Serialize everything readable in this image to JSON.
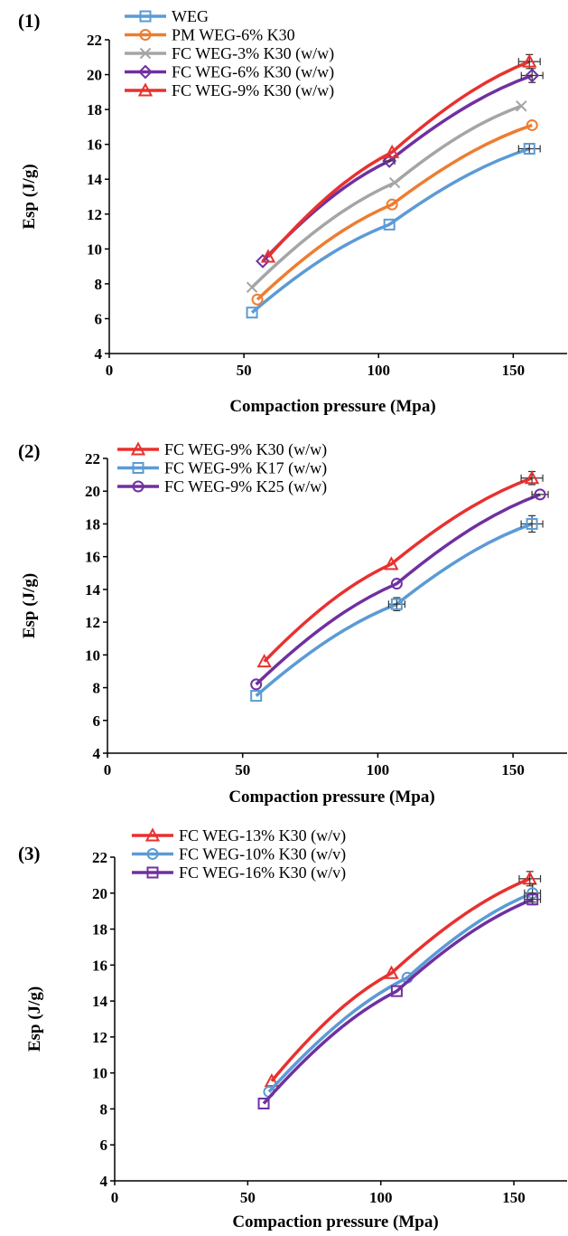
{
  "chart_data": [
    {
      "type": "line",
      "panel_label": "(1)",
      "xlabel": "Compaction pressure (Mpa)",
      "ylabel": "Esp (J/g)",
      "xlim": [
        0,
        170
      ],
      "ylim": [
        4,
        22
      ],
      "xticks": [
        0,
        50,
        100,
        150
      ],
      "yticks": [
        4,
        6,
        8,
        10,
        12,
        14,
        16,
        18,
        20,
        22
      ],
      "legend_position": "top-left",
      "grid": false,
      "series": [
        {
          "name": "WEG",
          "color": "#5b9bd5",
          "marker": "square",
          "x": [
            53,
            104,
            156
          ],
          "y": [
            6.35,
            11.4,
            15.75
          ],
          "xerr": [
            0,
            0,
            4
          ],
          "yerr": [
            0,
            0,
            0.3
          ]
        },
        {
          "name": "PM WEG-6% K30",
          "color": "#ed7d31",
          "marker": "circle",
          "x": [
            55,
            105,
            157
          ],
          "y": [
            7.1,
            12.55,
            17.1
          ],
          "xerr": [
            0,
            0,
            0
          ],
          "yerr": [
            0,
            0,
            0
          ]
        },
        {
          "name": "FC WEG-3% K30 (w/w)",
          "color": "#a5a5a5",
          "marker": "x",
          "x": [
            53,
            106,
            153
          ],
          "y": [
            7.8,
            13.8,
            18.2
          ],
          "xerr": [
            0,
            0,
            0
          ],
          "yerr": [
            0,
            0,
            0
          ]
        },
        {
          "name": "FC WEG-6% K30 (w/w)",
          "color": "#7030a0",
          "marker": "diamond",
          "x": [
            57,
            104,
            157
          ],
          "y": [
            9.3,
            15.05,
            19.95
          ],
          "xerr": [
            0,
            2,
            4
          ],
          "yerr": [
            0,
            0,
            0.4
          ]
        },
        {
          "name": "FC WEG-9% K30 (w/w)",
          "color": "#e8312f",
          "marker": "triangle",
          "x": [
            59,
            105,
            156
          ],
          "y": [
            9.55,
            15.55,
            20.75
          ],
          "xerr": [
            0,
            0,
            4
          ],
          "yerr": [
            0,
            0,
            0.4
          ]
        }
      ]
    },
    {
      "type": "line",
      "panel_label": "(2)",
      "xlabel": "Compaction pressure (Mpa)",
      "ylabel": "Esp (J/g)",
      "xlim": [
        0,
        170
      ],
      "ylim": [
        4,
        22
      ],
      "xticks": [
        0,
        50,
        100,
        150
      ],
      "yticks": [
        4,
        6,
        8,
        10,
        12,
        14,
        16,
        18,
        20,
        22
      ],
      "legend_position": "top-left",
      "grid": false,
      "series": [
        {
          "name": "FC WEG-9% K30 (w/w)",
          "color": "#e8312f",
          "marker": "triangle",
          "x": [
            58,
            105,
            157
          ],
          "y": [
            9.6,
            15.55,
            20.8
          ],
          "xerr": [
            0,
            0,
            4
          ],
          "yerr": [
            0,
            0,
            0.4
          ]
        },
        {
          "name": "FC WEG-9% K17 (w/w)",
          "color": "#5b9bd5",
          "marker": "square",
          "x": [
            55,
            107,
            157
          ],
          "y": [
            7.5,
            13.1,
            18.0
          ],
          "xerr": [
            0,
            3,
            4
          ],
          "yerr": [
            0,
            0.4,
            0.5
          ]
        },
        {
          "name": "FC WEG-9% K25 (w/w)",
          "color": "#7030a0",
          "marker": "circle",
          "x": [
            55,
            107,
            160
          ],
          "y": [
            8.2,
            14.35,
            19.8
          ],
          "xerr": [
            0,
            0,
            3
          ],
          "yerr": [
            0,
            0,
            0
          ]
        }
      ]
    },
    {
      "type": "line",
      "panel_label": "(3)",
      "xlabel": "Compaction pressure (Mpa)",
      "ylabel": "Esp (J/g)",
      "xlim": [
        0,
        170
      ],
      "ylim": [
        4,
        22
      ],
      "xticks": [
        0,
        50,
        100,
        150
      ],
      "yticks": [
        4,
        6,
        8,
        10,
        12,
        14,
        16,
        18,
        20,
        22
      ],
      "legend_position": "top-left",
      "grid": false,
      "series": [
        {
          "name": "FC WEG-13% K30 (w/v)",
          "color": "#e8312f",
          "marker": "triangle",
          "x": [
            59,
            104,
            156
          ],
          "y": [
            9.55,
            15.55,
            20.8
          ],
          "xerr": [
            0,
            0,
            4
          ],
          "yerr": [
            0,
            0,
            0.4
          ]
        },
        {
          "name": "FC WEG-10% K30 (w/v)",
          "color": "#5b9bd5",
          "marker": "circle",
          "x": [
            58,
            110,
            157
          ],
          "y": [
            8.95,
            15.3,
            20.0
          ],
          "xerr": [
            0,
            0,
            3
          ],
          "yerr": [
            0,
            0,
            0.5
          ]
        },
        {
          "name": "FC WEG-16% K30 (w/v)",
          "color": "#7030a0",
          "marker": "square",
          "x": [
            56,
            106,
            157
          ],
          "y": [
            8.3,
            14.55,
            19.65
          ],
          "xerr": [
            0,
            0,
            3
          ],
          "yerr": [
            0,
            0,
            0.3
          ]
        }
      ]
    }
  ]
}
